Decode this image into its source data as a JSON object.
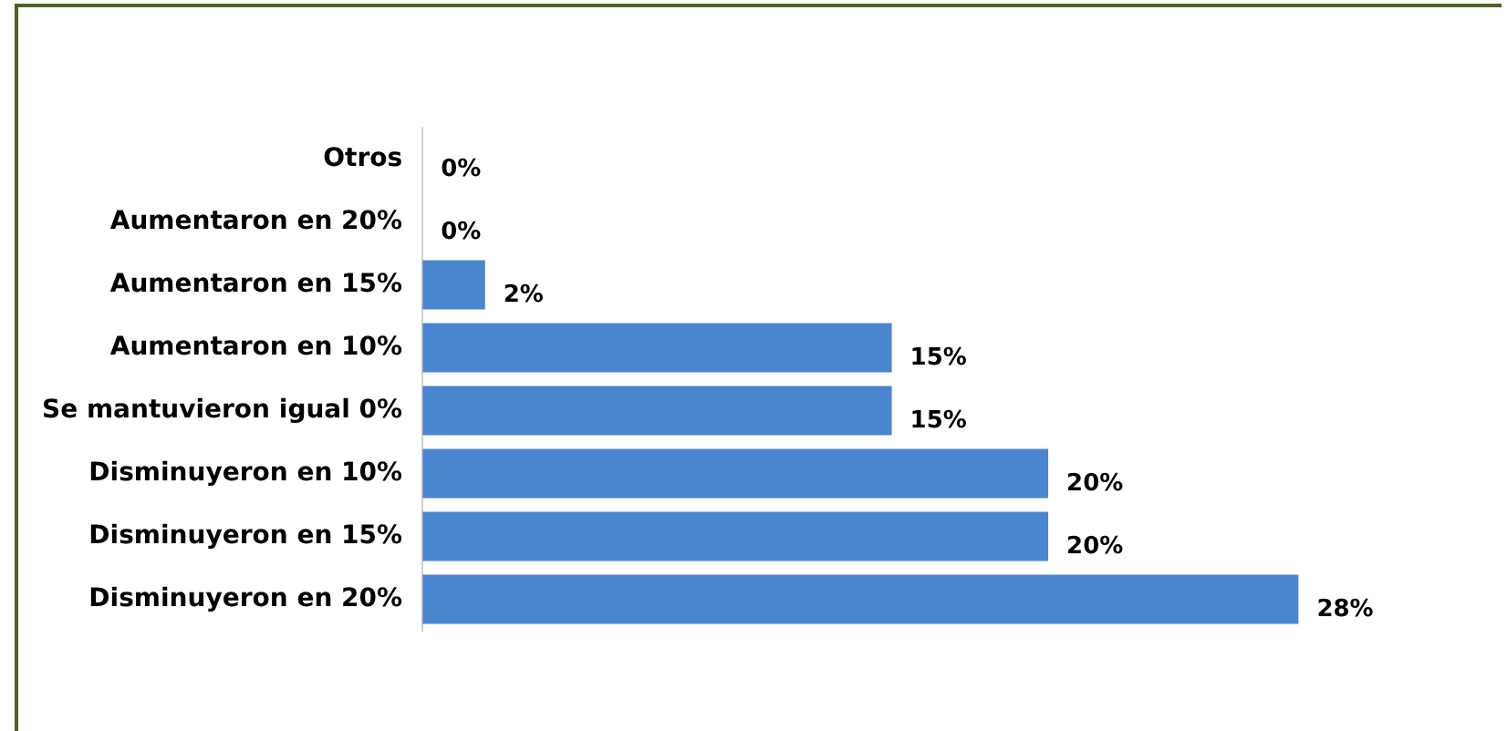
{
  "chart_data": {
    "type": "bar",
    "orientation": "horizontal",
    "tick_labels": "y",
    "categories": [
      "Otros",
      "Aumentaron en 20%",
      "Aumentaron en 15%",
      "Aumentaron en 10%",
      "Se mantuvieron igual 0%",
      "Disminuyeron en 10%",
      "Disminuyeron en 15%",
      "Disminuyeron en 20%"
    ],
    "values": [
      0,
      0,
      2,
      15,
      15,
      20,
      20,
      28
    ],
    "value_labels": [
      "0%",
      "0%",
      "2%",
      "15%",
      "15%",
      "20%",
      "20%",
      "28%"
    ],
    "color": "#4a86d0"
  }
}
